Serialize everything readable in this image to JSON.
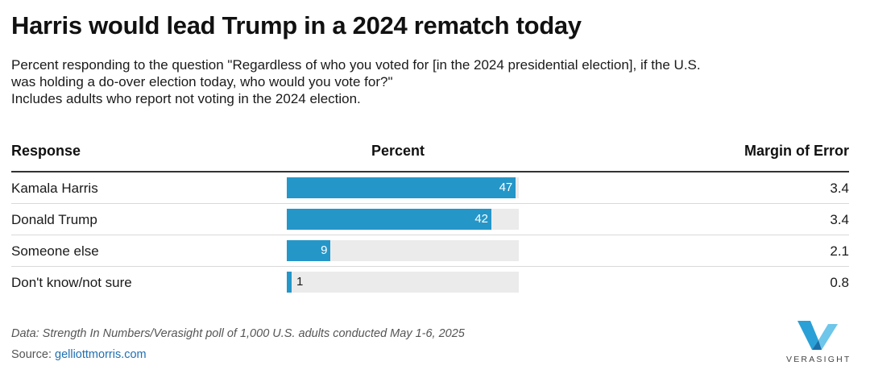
{
  "title": "Harris would lead Trump in a 2024 rematch today",
  "subtitle": [
    "Percent responding to the question \"Regardless of who you voted for [in the 2024 presidential election], if the U.S.",
    "was holding a do-over election today, who would you vote for?\"",
    "Includes adults who report not voting in the 2024 election."
  ],
  "table_header": {
    "response": "Response",
    "percent": "Percent",
    "moe": "Margin of Error"
  },
  "chart_data": {
    "type": "bar",
    "orientation": "horizontal",
    "categories": [
      "Kamala Harris",
      "Donald Trump",
      "Someone else",
      "Don't know/not sure"
    ],
    "values": [
      47,
      42,
      9,
      1
    ],
    "margin_of_error": [
      "3.4",
      "3.4",
      "2.1",
      "0.8"
    ],
    "xlim": [
      0,
      100
    ],
    "bar_color": "#2596c8",
    "track_color": "#ebebeb"
  },
  "footer": {
    "note": "Data: Strength In Numbers/Verasight poll of 1,000 U.S. adults conducted May 1-6, 2025",
    "source_label": "Source:",
    "source_link": "gelliottmorris.com"
  },
  "logo": {
    "text": "VERASIGHT",
    "icon": "verasight-v-logo-icon",
    "colors": [
      "#2aa0d6",
      "#6ec6ea",
      "#1b6fa8"
    ]
  }
}
